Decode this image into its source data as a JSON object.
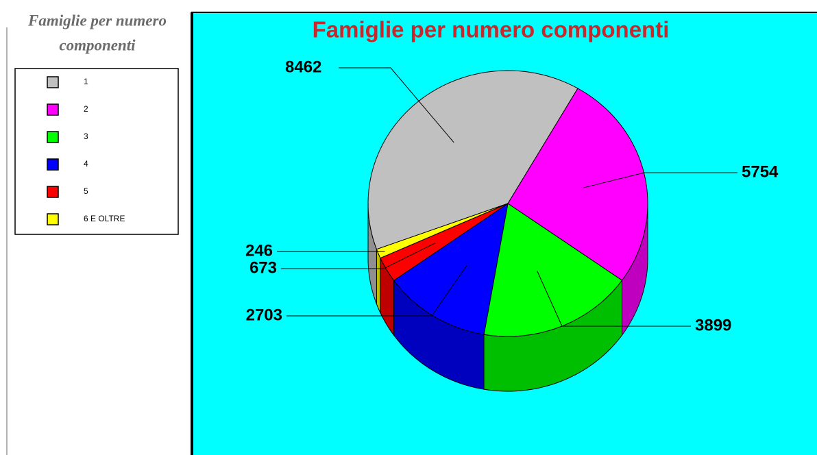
{
  "panel_title": [
    "Famiglie per numero",
    "componenti"
  ],
  "chart_data": {
    "type": "pie",
    "title": "Famiglie per numero componenti",
    "categories": [
      "1",
      "2",
      "3",
      "4",
      "5",
      "6 E OLTRE"
    ],
    "values": [
      8462,
      5754,
      3899,
      2703,
      673,
      246
    ],
    "colors": [
      "#c0c0c0",
      "#ff00ff",
      "#00ff00",
      "#0000ff",
      "#ff0000",
      "#ffff00"
    ],
    "legend": "left"
  }
}
